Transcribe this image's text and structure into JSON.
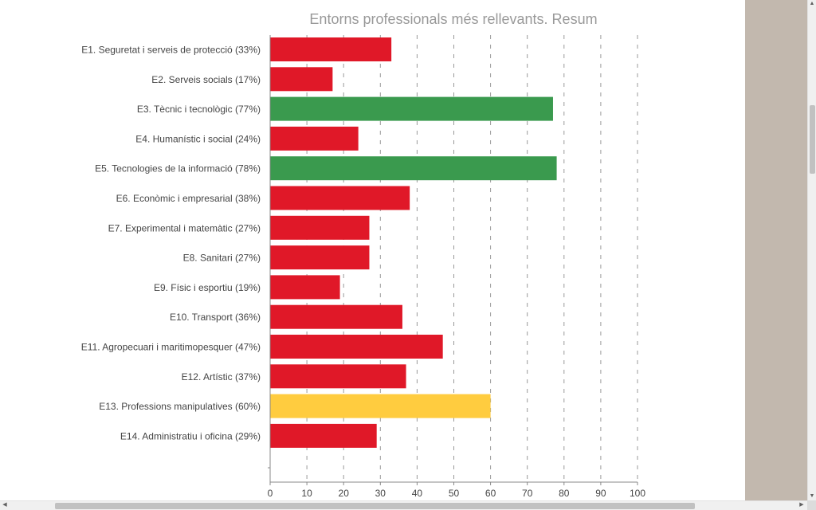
{
  "chart_data": {
    "type": "bar",
    "orientation": "horizontal",
    "title": "Entorns professionals més rellevants. Resum",
    "categories": [
      "E1. Seguretat i serveis de protecció (33%)",
      "E2. Serveis socials (17%)",
      "E3. Tècnic i tecnològic (77%)",
      "E4. Humanístic i social (24%)",
      "E5. Tecnologies de la informació (78%)",
      "E6. Econòmic i empresarial (38%)",
      "E7. Experimental i matemàtic (27%)",
      "E8. Sanitari (27%)",
      "E9. Físic i esportiu (19%)",
      "E10. Transport (36%)",
      "E11. Agropecuari i maritimopesquer (47%)",
      "E12. Artístic (37%)",
      "E13. Professions manipulatives (60%)",
      "E14. Administratiu i oficina (29%)"
    ],
    "values": [
      33,
      17,
      77,
      24,
      78,
      38,
      27,
      27,
      19,
      36,
      47,
      37,
      60,
      29
    ],
    "bar_colors": [
      "#e01828",
      "#e01828",
      "#3a9a4e",
      "#e01828",
      "#3a9a4e",
      "#e01828",
      "#e01828",
      "#e01828",
      "#e01828",
      "#e01828",
      "#e01828",
      "#e01828",
      "#ffcc3f",
      "#e01828"
    ],
    "xlim": [
      0,
      100
    ],
    "xticks": [
      0,
      10,
      20,
      30,
      40,
      50,
      60,
      70,
      80,
      90,
      100
    ],
    "grid": "vertical dashed",
    "xlabel": "",
    "ylabel": ""
  },
  "colors": {
    "red": "#e01828",
    "green": "#3a9a4e",
    "yellow": "#ffcc3f",
    "side_panel": "#c2b8ae",
    "title_text": "#999999",
    "label_text": "#444444"
  },
  "scroll_icons": {
    "up": "▲",
    "down": "▼",
    "left": "◀",
    "right": "▶"
  }
}
